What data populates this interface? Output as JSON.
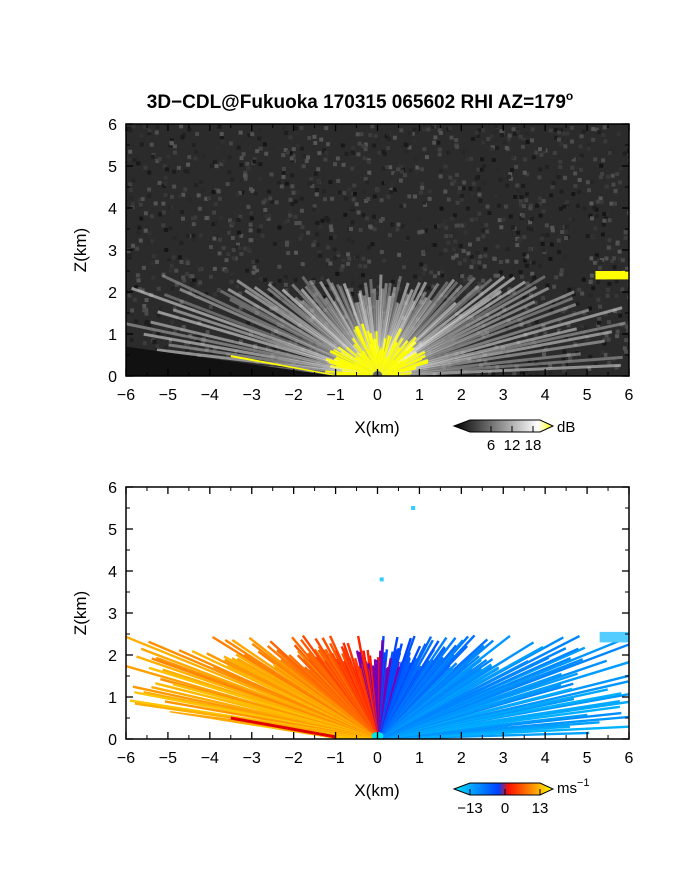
{
  "title": "3D−CDL@Fukuoka 170315 065602 RHI AZ=179",
  "title_degree": "o",
  "chart_data": [
    {
      "type": "heatmap",
      "quantity": "backscatter intensity",
      "xlabel": "X(km)",
      "ylabel": "Z(km)",
      "xlim": [
        -6,
        6
      ],
      "ylim": [
        0,
        6
      ],
      "xticks": [
        "−6",
        "−5",
        "−4",
        "−3",
        "−2",
        "−1",
        "0",
        "1",
        "2",
        "3",
        "4",
        "5",
        "6"
      ],
      "yticks": [
        "0",
        "1",
        "2",
        "3",
        "4",
        "5",
        "6"
      ],
      "colorbar": {
        "unit": "dB",
        "ticks": [
          "6",
          "12",
          "18"
        ],
        "range": [
          0,
          20
        ],
        "colors": [
          "#000000",
          "#ffffff",
          "#ffff00"
        ]
      },
      "features": {
        "aerosol_layer_top_km": 2.3,
        "cloud_near_surface_x_km": [
          -3.5,
          1.6
        ],
        "elevated_layer": {
          "x_km": [
            5.2,
            6.0
          ],
          "z_km": 2.4
        }
      }
    },
    {
      "type": "heatmap",
      "quantity": "radial velocity",
      "xlabel": "X(km)",
      "ylabel": "Z(km)",
      "xlim": [
        -6,
        6
      ],
      "ylim": [
        0,
        6
      ],
      "xticks": [
        "−6",
        "−5",
        "−4",
        "−3",
        "−2",
        "−1",
        "0",
        "1",
        "2",
        "3",
        "4",
        "5",
        "6"
      ],
      "yticks": [
        "0",
        "1",
        "2",
        "3",
        "4",
        "5",
        "6"
      ],
      "colorbar": {
        "unit": "ms",
        "unit_exponent": "−1",
        "ticks": [
          "−13",
          "0",
          "13"
        ],
        "range": [
          -13,
          13
        ],
        "colors": [
          "#00ffff",
          "#0050ff",
          "#ff0000",
          "#ffff00"
        ]
      },
      "features": {
        "negative_x_velocity_ms": 9,
        "positive_x_velocity_ms": -8,
        "scattered_points_km": [
          [
            0.85,
            5.5
          ],
          [
            0.1,
            3.8
          ]
        ]
      }
    }
  ]
}
